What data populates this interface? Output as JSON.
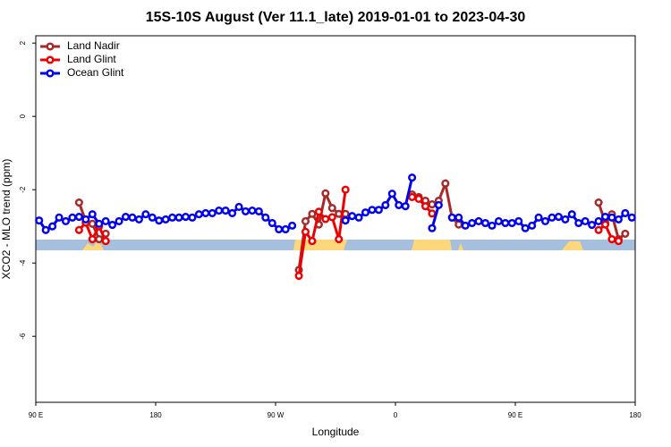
{
  "chart_data": {
    "type": "line",
    "title": "15S-10S August (Ver 11.1_late)   2019-01-01 to 2023-04-30",
    "x_label": "Longitude",
    "y_label": "XCO2 - MLO trend (ppm)",
    "xlim": [
      90,
      540
    ],
    "ylim": [
      -7.8,
      2.2
    ],
    "xticks": [
      {
        "value": 90,
        "label": "90 E"
      },
      {
        "value": 180,
        "label": "180"
      },
      {
        "value": 270,
        "label": "90 W"
      },
      {
        "value": 360,
        "label": "0"
      },
      {
        "value": 450,
        "label": "90 E"
      },
      {
        "value": 540,
        "label": "180"
      }
    ],
    "yticks": [
      -6,
      -4,
      -2,
      0,
      2
    ],
    "legend": "topleft",
    "series": [
      {
        "name": "Land Nadir",
        "color": "#a52a2a",
        "x": [
          122.5,
          127.5,
          132.5,
          137.5,
          142.5,
          147.5,
          287.5,
          292.5,
          297.5,
          302.5,
          307.5,
          312.5,
          317.5,
          322.5,
          327.5,
          372.5,
          377.5,
          382.5,
          387.5,
          392.5,
          397.5,
          402.5,
          407.5,
          412.5,
          512.5,
          517.5,
          522.5,
          527.5,
          532.5
        ],
        "values": [
          -2.35,
          -2.86,
          -2.93,
          -3.35,
          -3.2,
          null,
          -4.19,
          -2.86,
          -2.66,
          -2.95,
          -2.1,
          -2.5,
          -2.66,
          -2.66,
          null,
          -2.13,
          -2.2,
          -2.3,
          -2.4,
          -2.3,
          -1.83,
          -2.76,
          -2.95,
          null,
          -2.35,
          -2.9,
          -2.67,
          -3.35,
          -3.2
        ]
      },
      {
        "name": "Land Glint",
        "color": "#ee0000",
        "x": [
          122.5,
          127.5,
          132.5,
          137.5,
          142.5,
          147.5,
          287.5,
          292.5,
          297.5,
          302.5,
          307.5,
          312.5,
          317.5,
          322.5,
          327.5,
          372.5,
          377.5,
          382.5,
          387.5,
          392.5,
          512.5,
          517.5,
          522.5,
          527.5
        ],
        "values": [
          -3.1,
          -2.9,
          -3.35,
          -3.0,
          -3.4,
          null,
          -4.35,
          -3.15,
          -3.4,
          -2.6,
          -2.8,
          -2.75,
          -3.35,
          -2.0,
          null,
          -2.2,
          -2.25,
          -2.45,
          -2.65,
          null,
          -3.1,
          -2.95,
          -3.35,
          -3.4
        ]
      },
      {
        "name": "Ocean Glint",
        "color": "#0000ee",
        "x": [
          92.5,
          97.5,
          102.5,
          107.5,
          112.5,
          117.5,
          122.5,
          127.5,
          132.5,
          137.5,
          142.5,
          147.5,
          152.5,
          157.5,
          162.5,
          167.5,
          172.5,
          177.5,
          182.5,
          187.5,
          192.5,
          197.5,
          202.5,
          207.5,
          212.5,
          217.5,
          222.5,
          227.5,
          232.5,
          237.5,
          242.5,
          247.5,
          252.5,
          257.5,
          262.5,
          267.5,
          272.5,
          277.5,
          282.5,
          287.5,
          322.5,
          327.5,
          332.5,
          337.5,
          342.5,
          347.5,
          352.5,
          357.5,
          362.5,
          367.5,
          372.5,
          377.5,
          387.5,
          392.5,
          397.5,
          402.5,
          407.5,
          412.5,
          417.5,
          422.5,
          427.5,
          432.5,
          437.5,
          442.5,
          447.5,
          452.5,
          457.5,
          462.5,
          467.5,
          472.5,
          477.5,
          482.5,
          487.5,
          492.5,
          497.5,
          502.5,
          507.5,
          512.5,
          517.5,
          522.5,
          527.5,
          532.5,
          537.5
        ],
        "values": [
          -2.84,
          -3.1,
          -3.0,
          -2.76,
          -2.86,
          -2.76,
          -2.74,
          -2.81,
          -2.67,
          -2.93,
          -2.86,
          -2.96,
          -2.86,
          -2.74,
          -2.76,
          -2.81,
          -2.67,
          -2.76,
          -2.84,
          -2.81,
          -2.76,
          -2.76,
          -2.74,
          -2.76,
          -2.67,
          -2.64,
          -2.64,
          -2.57,
          -2.57,
          -2.64,
          -2.47,
          -2.59,
          -2.57,
          -2.59,
          -2.76,
          -2.91,
          -3.08,
          -3.08,
          -2.98,
          null,
          -2.84,
          -2.72,
          -2.76,
          -2.62,
          -2.55,
          -2.55,
          -2.42,
          -2.11,
          -2.42,
          -2.45,
          -1.67,
          null,
          -3.05,
          -2.42,
          null,
          -2.76,
          -2.76,
          -2.98,
          -2.91,
          -2.86,
          -2.91,
          -2.98,
          -2.86,
          -2.91,
          -2.91,
          -2.86,
          -3.05,
          -2.98,
          -2.76,
          -2.86,
          -2.76,
          -2.74,
          -2.81,
          -2.67,
          -2.91,
          -2.86,
          -2.96,
          -2.86,
          -2.74,
          -2.76,
          -2.81,
          -2.64,
          -2.76
        ]
      }
    ]
  }
}
